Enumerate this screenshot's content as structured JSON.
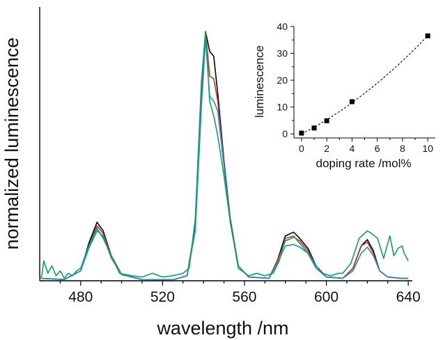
{
  "chart_data": [
    {
      "type": "line",
      "xlabel": "wavelength /nm",
      "ylabel": "normalized luminescence",
      "xlim": [
        460,
        642
      ],
      "ylim": [
        0,
        1.0
      ],
      "x_ticks": [
        480,
        520,
        560,
        600,
        640
      ],
      "y_ticks": [],
      "grid": false,
      "legend": "none",
      "series": [
        {
          "color": "#000000",
          "points": [
            [
              460,
              0.01
            ],
            [
              472,
              0.005
            ],
            [
              480,
              0.04
            ],
            [
              484,
              0.15
            ],
            [
              488,
              0.235
            ],
            [
              491,
              0.2
            ],
            [
              495,
              0.1
            ],
            [
              500,
              0.025
            ],
            [
              510,
              0.005
            ],
            [
              525,
              0.004
            ],
            [
              532,
              0.02
            ],
            [
              536,
              0.22
            ],
            [
              539,
              0.75
            ],
            [
              541,
              1.0
            ],
            [
              543,
              0.92
            ],
            [
              545,
              0.9
            ],
            [
              547,
              0.75
            ],
            [
              550,
              0.48
            ],
            [
              553,
              0.25
            ],
            [
              557,
              0.06
            ],
            [
              562,
              0.015
            ],
            [
              572,
              0.01
            ],
            [
              576,
              0.08
            ],
            [
              580,
              0.18
            ],
            [
              584,
              0.195
            ],
            [
              587,
              0.17
            ],
            [
              591,
              0.13
            ],
            [
              595,
              0.06
            ],
            [
              600,
              0.015
            ],
            [
              608,
              0.01
            ],
            [
              613,
              0.05
            ],
            [
              617,
              0.14
            ],
            [
              620,
              0.165
            ],
            [
              623,
              0.12
            ],
            [
              626,
              0.04
            ],
            [
              630,
              0.015
            ],
            [
              636,
              0.01
            ],
            [
              640,
              0.01
            ]
          ]
        },
        {
          "color": "#d02820",
          "points": [
            [
              460,
              0.01
            ],
            [
              472,
              0.005
            ],
            [
              480,
              0.04
            ],
            [
              484,
              0.14
            ],
            [
              488,
              0.22
            ],
            [
              491,
              0.19
            ],
            [
              495,
              0.1
            ],
            [
              500,
              0.025
            ],
            [
              510,
              0.005
            ],
            [
              525,
              0.004
            ],
            [
              532,
              0.02
            ],
            [
              536,
              0.22
            ],
            [
              539,
              0.78
            ],
            [
              541,
              1.0
            ],
            [
              543,
              0.82
            ],
            [
              545,
              0.81
            ],
            [
              547,
              0.72
            ],
            [
              550,
              0.47
            ],
            [
              553,
              0.24
            ],
            [
              557,
              0.06
            ],
            [
              562,
              0.015
            ],
            [
              572,
              0.01
            ],
            [
              576,
              0.08
            ],
            [
              580,
              0.16
            ],
            [
              584,
              0.175
            ],
            [
              587,
              0.16
            ],
            [
              591,
              0.12
            ],
            [
              595,
              0.06
            ],
            [
              600,
              0.015
            ],
            [
              608,
              0.01
            ],
            [
              613,
              0.05
            ],
            [
              617,
              0.14
            ],
            [
              620,
              0.155
            ],
            [
              623,
              0.11
            ],
            [
              626,
              0.04
            ],
            [
              630,
              0.015
            ],
            [
              636,
              0.01
            ],
            [
              640,
              0.01
            ]
          ]
        },
        {
          "color": "#1a90d0",
          "points": [
            [
              460,
              0.01
            ],
            [
              472,
              0.005
            ],
            [
              480,
              0.04
            ],
            [
              484,
              0.13
            ],
            [
              488,
              0.2
            ],
            [
              491,
              0.18
            ],
            [
              495,
              0.09
            ],
            [
              500,
              0.025
            ],
            [
              510,
              0.005
            ],
            [
              525,
              0.004
            ],
            [
              532,
              0.02
            ],
            [
              536,
              0.2
            ],
            [
              539,
              0.7
            ],
            [
              541,
              0.97
            ],
            [
              543,
              0.74
            ],
            [
              545,
              0.72
            ],
            [
              547,
              0.68
            ],
            [
              550,
              0.46
            ],
            [
              553,
              0.24
            ],
            [
              557,
              0.06
            ],
            [
              562,
              0.015
            ],
            [
              572,
              0.01
            ],
            [
              576,
              0.07
            ],
            [
              580,
              0.14
            ],
            [
              584,
              0.145
            ],
            [
              587,
              0.135
            ],
            [
              591,
              0.11
            ],
            [
              595,
              0.05
            ],
            [
              600,
              0.015
            ],
            [
              608,
              0.01
            ],
            [
              613,
              0.04
            ],
            [
              617,
              0.11
            ],
            [
              620,
              0.135
            ],
            [
              623,
              0.1
            ],
            [
              626,
              0.04
            ],
            [
              630,
              0.015
            ],
            [
              636,
              0.01
            ],
            [
              640,
              0.01
            ]
          ]
        },
        {
          "color": "#10a060",
          "points": [
            [
              460,
              0.01
            ],
            [
              461,
              0.02
            ],
            [
              462,
              0.08
            ],
            [
              464,
              0.03
            ],
            [
              466,
              0.06
            ],
            [
              468,
              0.02
            ],
            [
              470,
              0.04
            ],
            [
              472,
              0.01
            ],
            [
              474,
              0.03
            ],
            [
              476,
              0.02
            ],
            [
              478,
              0.04
            ],
            [
              480,
              0.05
            ],
            [
              484,
              0.14
            ],
            [
              488,
              0.21
            ],
            [
              491,
              0.17
            ],
            [
              495,
              0.1
            ],
            [
              499,
              0.03
            ],
            [
              505,
              0.02
            ],
            [
              510,
              0.015
            ],
            [
              515,
              0.03
            ],
            [
              520,
              0.015
            ],
            [
              525,
              0.02
            ],
            [
              530,
              0.03
            ],
            [
              533,
              0.05
            ],
            [
              536,
              0.25
            ],
            [
              539,
              0.8
            ],
            [
              541,
              1.0
            ],
            [
              543,
              0.72
            ],
            [
              545,
              0.66
            ],
            [
              547,
              0.58
            ],
            [
              550,
              0.42
            ],
            [
              553,
              0.24
            ],
            [
              557,
              0.05
            ],
            [
              562,
              0.02
            ],
            [
              566,
              0.03
            ],
            [
              570,
              0.02
            ],
            [
              574,
              0.03
            ],
            [
              577,
              0.08
            ],
            [
              580,
              0.17
            ],
            [
              584,
              0.18
            ],
            [
              587,
              0.15
            ],
            [
              591,
              0.11
            ],
            [
              595,
              0.06
            ],
            [
              598,
              0.03
            ],
            [
              602,
              0.02
            ],
            [
              606,
              0.03
            ],
            [
              608,
              0.03
            ],
            [
              612,
              0.07
            ],
            [
              616,
              0.17
            ],
            [
              620,
              0.2
            ],
            [
              622,
              0.19
            ],
            [
              625,
              0.17
            ],
            [
              628,
              0.09
            ],
            [
              631,
              0.18
            ],
            [
              633,
              0.1
            ],
            [
              635,
              0.13
            ],
            [
              637,
              0.14
            ],
            [
              638,
              0.11
            ],
            [
              640,
              0.08
            ]
          ]
        }
      ]
    },
    {
      "type": "scatter",
      "xlabel": "doping rate /mol%",
      "ylabel": "luminescence",
      "xlim": [
        -0.6,
        10.6
      ],
      "ylim": [
        -1.5,
        40
      ],
      "x_ticks": [
        0,
        2,
        4,
        6,
        8,
        10
      ],
      "y_ticks": [
        0,
        10,
        20,
        30,
        40
      ],
      "grid": false,
      "legend": "none",
      "fit_line": "dashed",
      "series": [
        {
          "color": "#000000",
          "x": [
            0,
            1,
            2,
            4,
            10
          ],
          "y": [
            0.3,
            2.2,
            4.9,
            12,
            36.5
          ]
        }
      ]
    }
  ]
}
